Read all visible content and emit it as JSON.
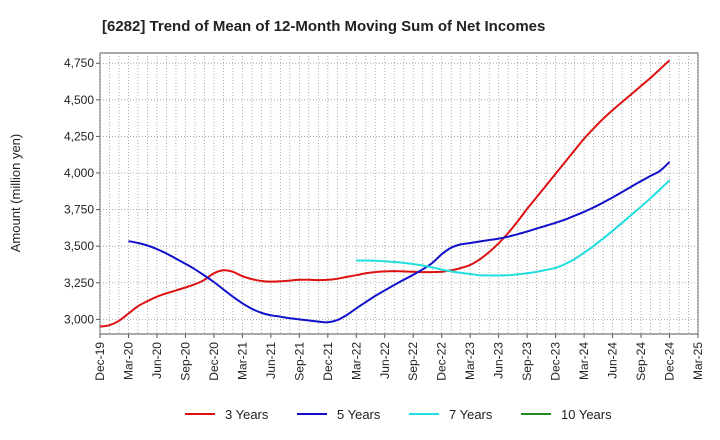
{
  "chart_data": {
    "type": "line",
    "title": "[6282]  Trend of Mean of 12-Month Moving Sum of Net Incomes",
    "xlabel": "",
    "ylabel": "Amount (million yen)",
    "ylim": [
      2900,
      4820
    ],
    "y_ticks": [
      3000,
      3250,
      3500,
      3750,
      4000,
      4250,
      4500,
      4750
    ],
    "y_tick_labels": [
      "3,000",
      "3,250",
      "3,500",
      "3,750",
      "4,000",
      "4,250",
      "4,500",
      "4,750"
    ],
    "x_ticks": [
      "Dec-19",
      "Mar-20",
      "Jun-20",
      "Sep-20",
      "Dec-20",
      "Mar-21",
      "Jun-21",
      "Sep-21",
      "Dec-21",
      "Mar-22",
      "Jun-22",
      "Sep-22",
      "Dec-22",
      "Mar-23",
      "Jun-23",
      "Sep-23",
      "Dec-23",
      "Mar-24",
      "Jun-24",
      "Sep-24",
      "Dec-24",
      "Mar-25"
    ],
    "grid": true,
    "legend_position": "bottom",
    "series": [
      {
        "name": "3 Years",
        "color": "#dd1111",
        "points": [
          [
            "Dec-19",
            2950
          ],
          [
            "Jan-20",
            2960
          ],
          [
            "Feb-20",
            2990
          ],
          [
            "Mar-20",
            3040
          ],
          [
            "Apr-20",
            3090
          ],
          [
            "May-20",
            3125
          ],
          [
            "Jun-20",
            3155
          ],
          [
            "Jul-20",
            3178
          ],
          [
            "Aug-20",
            3198
          ],
          [
            "Sep-20",
            3218
          ],
          [
            "Oct-20",
            3240
          ],
          [
            "Nov-20",
            3270
          ],
          [
            "Dec-20",
            3315
          ],
          [
            "Jan-21",
            3335
          ],
          [
            "Feb-21",
            3325
          ],
          [
            "Mar-21",
            3295
          ],
          [
            "Apr-21",
            3275
          ],
          [
            "May-21",
            3262
          ],
          [
            "Jun-21",
            3258
          ],
          [
            "Jul-21",
            3260
          ],
          [
            "Aug-21",
            3265
          ],
          [
            "Sep-21",
            3270
          ],
          [
            "Oct-21",
            3270
          ],
          [
            "Nov-21",
            3268
          ],
          [
            "Dec-21",
            3270
          ],
          [
            "Jan-22",
            3278
          ],
          [
            "Feb-22",
            3290
          ],
          [
            "Mar-22",
            3302
          ],
          [
            "Apr-22",
            3315
          ],
          [
            "May-22",
            3323
          ],
          [
            "Jun-22",
            3328
          ],
          [
            "Jul-22",
            3330
          ],
          [
            "Aug-22",
            3328
          ],
          [
            "Sep-22",
            3325
          ],
          [
            "Oct-22",
            3323
          ],
          [
            "Nov-22",
            3323
          ],
          [
            "Dec-22",
            3325
          ],
          [
            "Jan-23",
            3335
          ],
          [
            "Feb-23",
            3350
          ],
          [
            "Mar-23",
            3372
          ],
          [
            "Apr-23",
            3410
          ],
          [
            "May-23",
            3460
          ],
          [
            "Jun-23",
            3520
          ],
          [
            "Jul-23",
            3590
          ],
          [
            "Aug-23",
            3670
          ],
          [
            "Sep-23",
            3755
          ],
          [
            "Oct-23",
            3835
          ],
          [
            "Nov-23",
            3915
          ],
          [
            "Dec-23",
            3995
          ],
          [
            "Jan-24",
            4075
          ],
          [
            "Feb-24",
            4155
          ],
          [
            "Mar-24",
            4235
          ],
          [
            "Apr-24",
            4305
          ],
          [
            "May-24",
            4370
          ],
          [
            "Jun-24",
            4430
          ],
          [
            "Jul-24",
            4485
          ],
          [
            "Aug-24",
            4540
          ],
          [
            "Sep-24",
            4595
          ],
          [
            "Oct-24",
            4650
          ],
          [
            "Nov-24",
            4710
          ],
          [
            "Dec-24",
            4770
          ]
        ]
      },
      {
        "name": "5 Years",
        "color": "#1111cc",
        "points": [
          [
            "Mar-20",
            3535
          ],
          [
            "Apr-20",
            3522
          ],
          [
            "May-20",
            3505
          ],
          [
            "Jun-20",
            3480
          ],
          [
            "Jul-20",
            3450
          ],
          [
            "Aug-20",
            3415
          ],
          [
            "Sep-20",
            3380
          ],
          [
            "Oct-20",
            3342
          ],
          [
            "Nov-20",
            3300
          ],
          [
            "Dec-20",
            3255
          ],
          [
            "Jan-21",
            3205
          ],
          [
            "Feb-21",
            3155
          ],
          [
            "Mar-21",
            3110
          ],
          [
            "Apr-21",
            3072
          ],
          [
            "May-21",
            3045
          ],
          [
            "Jun-21",
            3028
          ],
          [
            "Jul-21",
            3018
          ],
          [
            "Aug-21",
            3008
          ],
          [
            "Sep-21",
            3000
          ],
          [
            "Oct-21",
            2992
          ],
          [
            "Nov-21",
            2985
          ],
          [
            "Dec-21",
            2980
          ],
          [
            "Jan-22",
            2995
          ],
          [
            "Feb-22",
            3030
          ],
          [
            "Mar-22",
            3075
          ],
          [
            "Apr-22",
            3118
          ],
          [
            "May-22",
            3160
          ],
          [
            "Jun-22",
            3198
          ],
          [
            "Jul-22",
            3235
          ],
          [
            "Aug-22",
            3270
          ],
          [
            "Sep-22",
            3305
          ],
          [
            "Oct-22",
            3342
          ],
          [
            "Nov-22",
            3385
          ],
          [
            "Dec-22",
            3445
          ],
          [
            "Jan-23",
            3490
          ],
          [
            "Feb-23",
            3512
          ],
          [
            "Mar-23",
            3522
          ],
          [
            "Apr-23",
            3532
          ],
          [
            "May-23",
            3542
          ],
          [
            "Jun-23",
            3552
          ],
          [
            "Jul-23",
            3565
          ],
          [
            "Aug-23",
            3582
          ],
          [
            "Sep-23",
            3600
          ],
          [
            "Oct-23",
            3620
          ],
          [
            "Nov-23",
            3640
          ],
          [
            "Dec-23",
            3660
          ],
          [
            "Jan-24",
            3682
          ],
          [
            "Feb-24",
            3708
          ],
          [
            "Mar-24",
            3735
          ],
          [
            "Apr-24",
            3765
          ],
          [
            "May-24",
            3798
          ],
          [
            "Jun-24",
            3833
          ],
          [
            "Jul-24",
            3870
          ],
          [
            "Aug-24",
            3908
          ],
          [
            "Sep-24",
            3945
          ],
          [
            "Oct-24",
            3980
          ],
          [
            "Nov-24",
            4015
          ],
          [
            "Dec-24",
            4075
          ]
        ]
      },
      {
        "name": "7 Years",
        "color": "#22dddd",
        "points": [
          [
            "Mar-22",
            3402
          ],
          [
            "Apr-22",
            3402
          ],
          [
            "May-22",
            3400
          ],
          [
            "Jun-22",
            3397
          ],
          [
            "Jul-22",
            3392
          ],
          [
            "Aug-22",
            3386
          ],
          [
            "Sep-22",
            3378
          ],
          [
            "Oct-22",
            3368
          ],
          [
            "Nov-22",
            3355
          ],
          [
            "Dec-22",
            3340
          ],
          [
            "Jan-23",
            3328
          ],
          [
            "Feb-23",
            3318
          ],
          [
            "Mar-23",
            3310
          ],
          [
            "Apr-23",
            3302
          ],
          [
            "May-23",
            3300
          ],
          [
            "Jun-23",
            3300
          ],
          [
            "Jul-23",
            3302
          ],
          [
            "Aug-23",
            3307
          ],
          [
            "Sep-23",
            3315
          ],
          [
            "Oct-23",
            3325
          ],
          [
            "Nov-23",
            3338
          ],
          [
            "Dec-23",
            3352
          ],
          [
            "Jan-24",
            3378
          ],
          [
            "Feb-24",
            3412
          ],
          [
            "Mar-24",
            3455
          ],
          [
            "Apr-24",
            3502
          ],
          [
            "May-24",
            3552
          ],
          [
            "Jun-24",
            3605
          ],
          [
            "Jul-24",
            3660
          ],
          [
            "Aug-24",
            3715
          ],
          [
            "Sep-24",
            3770
          ],
          [
            "Oct-24",
            3828
          ],
          [
            "Nov-24",
            3888
          ],
          [
            "Dec-24",
            3950
          ]
        ]
      },
      {
        "name": "10 Years",
        "color": "#228822",
        "points": []
      }
    ]
  }
}
